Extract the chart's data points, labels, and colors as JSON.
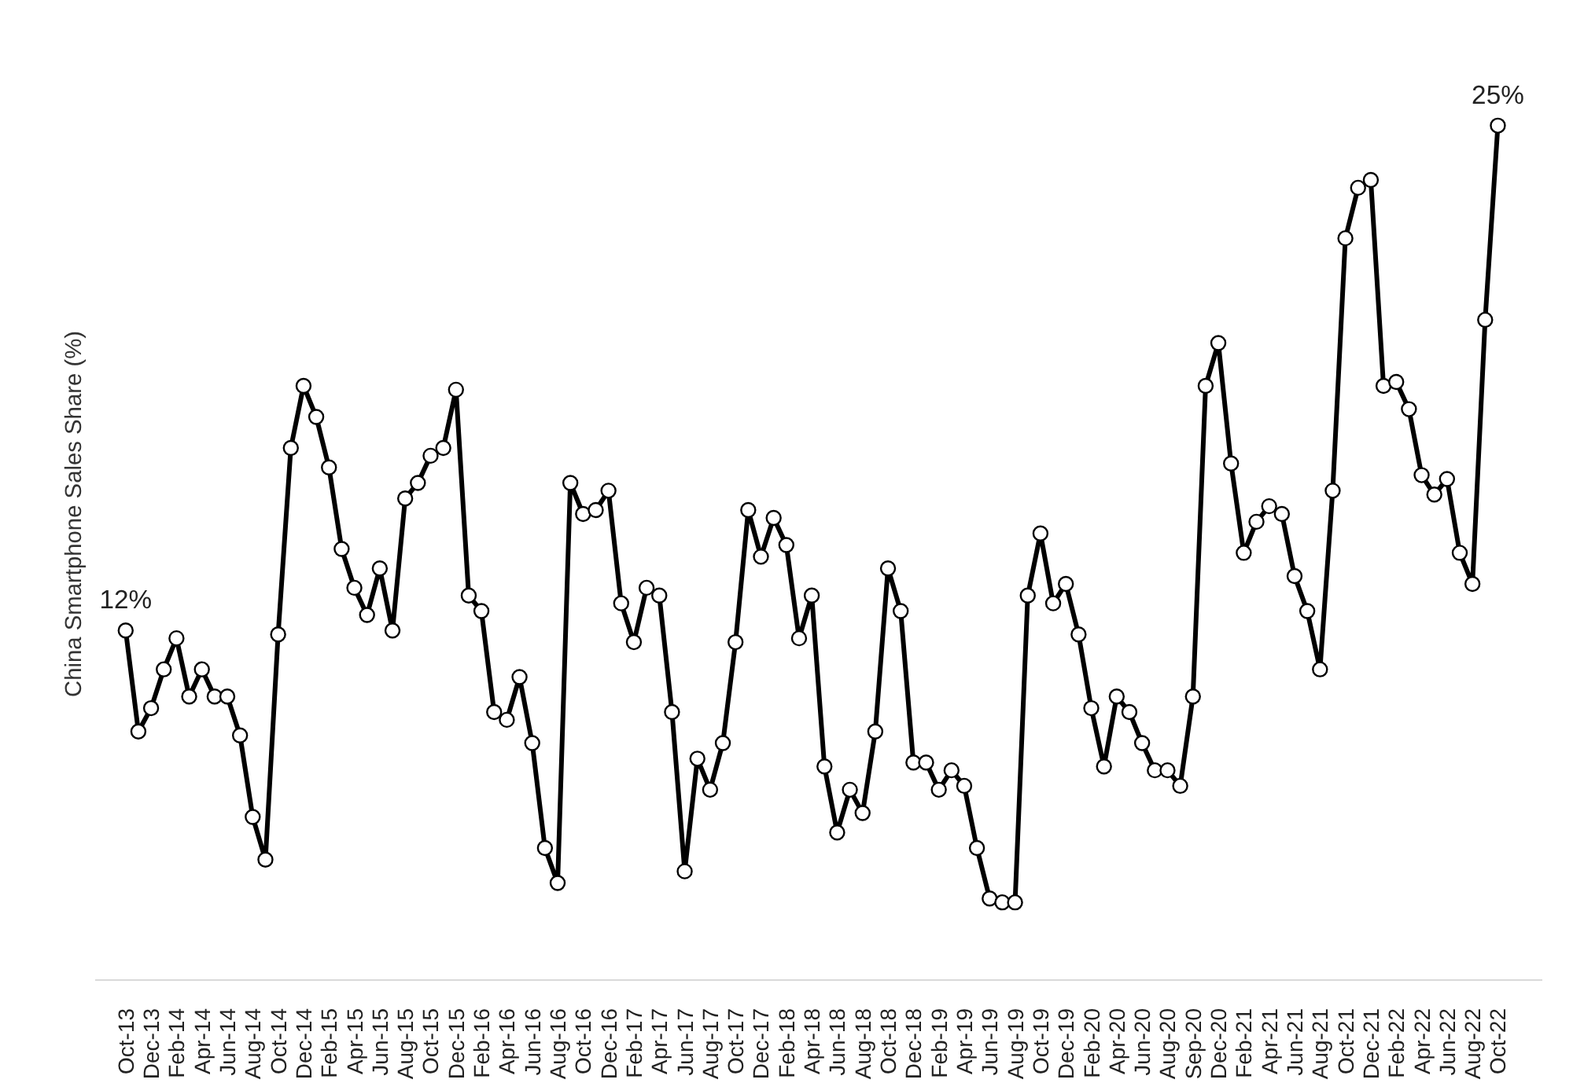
{
  "chart_data": {
    "type": "line",
    "ylabel": "China Smartphone Sales Share (%)",
    "categories": [
      "Oct-13",
      null,
      "Dec-13",
      null,
      "Feb-14",
      null,
      "Apr-14",
      null,
      "Jun-14",
      null,
      "Aug-14",
      null,
      "Oct-14",
      null,
      "Dec-14",
      null,
      "Feb-15",
      null,
      "Apr-15",
      null,
      "Jun-15",
      null,
      "Aug-15",
      null,
      "Oct-15",
      null,
      "Dec-15",
      null,
      "Feb-16",
      null,
      "Apr-16",
      null,
      "Jun-16",
      null,
      "Aug-16",
      null,
      "Oct-16",
      null,
      "Dec-16",
      null,
      "Feb-17",
      null,
      "Apr-17",
      null,
      "Jun-17",
      null,
      "Aug-17",
      null,
      "Oct-17",
      null,
      "Dec-17",
      null,
      "Feb-18",
      null,
      "Apr-18",
      null,
      "Jun-18",
      null,
      "Aug-18",
      null,
      "Oct-18",
      null,
      "Dec-18",
      null,
      "Feb-19",
      null,
      "Apr-19",
      null,
      "Jun-19",
      null,
      "Aug-19",
      null,
      "Oct-19",
      null,
      "Dec-19",
      null,
      "Feb-20",
      null,
      "Apr-20",
      null,
      "Jun-20",
      null,
      "Aug-20",
      null,
      "Sep-20",
      null,
      "Dec-20",
      null,
      "Feb-21",
      null,
      "Apr-21",
      null,
      "Jun-21",
      null,
      "Aug-21",
      null,
      "Oct-21",
      null,
      "Dec-21",
      null,
      "Feb-22",
      null,
      "Apr-22",
      null,
      "Jun-22",
      null,
      "Aug-22",
      null,
      "Oct-22"
    ],
    "values": [
      12,
      9.4,
      10.0,
      11.0,
      11.8,
      10.3,
      11.0,
      10.3,
      10.3,
      9.3,
      7.2,
      6.1,
      11.9,
      16.7,
      18.3,
      17.5,
      16.2,
      14.1,
      13.1,
      12.4,
      13.6,
      12.0,
      15.4,
      15.8,
      16.5,
      16.7,
      18.2,
      12.9,
      12.5,
      9.9,
      9.7,
      10.8,
      9.1,
      6.4,
      5.5,
      15.8,
      15.0,
      15.1,
      15.6,
      12.7,
      11.7,
      13.1,
      12.9,
      9.9,
      5.8,
      8.7,
      7.9,
      9.1,
      11.7,
      15.1,
      13.9,
      14.9,
      14.2,
      11.8,
      12.9,
      8.5,
      6.8,
      7.9,
      7.3,
      9.4,
      13.6,
      12.5,
      8.6,
      8.6,
      7.9,
      8.4,
      8.0,
      6.4,
      5.1,
      5.0,
      5.0,
      12.9,
      14.5,
      12.7,
      13.2,
      11.9,
      10.0,
      8.5,
      10.3,
      9.9,
      9.1,
      8.4,
      8.4,
      8.0,
      10.3,
      18.3,
      19.4,
      16.3,
      14.0,
      14.8,
      15.2,
      15.0,
      13.4,
      12.5,
      11.0,
      15.6,
      22.1,
      23.4,
      23.6,
      18.3,
      18.4,
      17.7,
      16.0,
      15.5,
      15.9,
      14.0,
      13.2,
      20.0,
      25
    ],
    "value_labels": [
      "12%",
      null,
      null,
      null,
      null,
      null,
      null,
      null,
      null,
      null,
      null,
      null,
      null,
      null,
      null,
      null,
      null,
      null,
      null,
      null,
      null,
      null,
      null,
      null,
      null,
      null,
      null,
      null,
      null,
      null,
      null,
      null,
      null,
      null,
      null,
      null,
      null,
      null,
      null,
      null,
      null,
      null,
      null,
      null,
      null,
      null,
      null,
      null,
      null,
      null,
      null,
      null,
      null,
      null,
      null,
      null,
      null,
      null,
      null,
      null,
      null,
      null,
      null,
      null,
      null,
      null,
      null,
      null,
      null,
      null,
      null,
      null,
      null,
      null,
      null,
      null,
      null,
      null,
      null,
      null,
      null,
      null,
      null,
      null,
      null,
      null,
      null,
      null,
      null,
      null,
      null,
      null,
      null,
      null,
      null,
      null,
      null,
      null,
      null,
      null,
      null,
      null,
      null,
      null,
      null,
      null,
      null,
      null,
      "25%"
    ],
    "color": "#000000",
    "tick_labels": "x",
    "grid": false,
    "marker": "circle",
    "line_style": "solid"
  }
}
